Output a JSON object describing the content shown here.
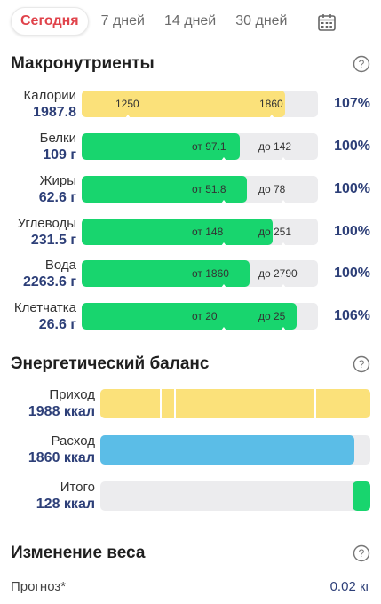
{
  "tabs": [
    {
      "label": "Сегодня",
      "active": true
    },
    {
      "label": "7 дней",
      "active": false
    },
    {
      "label": "14 дней",
      "active": false
    },
    {
      "label": "30 дней",
      "active": false
    }
  ],
  "icons": {
    "calendar": "calendar-icon",
    "help": "question-circle-icon"
  },
  "colors": {
    "accent": "#e0434b",
    "value_text": "#2d3f78",
    "calories_fill": "#fbe17a",
    "macro_fill": "#18d56e",
    "expense_fill": "#5bbde7",
    "track": "#ececee"
  },
  "macros": {
    "title": "Макронутриенты",
    "items": [
      {
        "name": "Калории",
        "value": "1987.8",
        "low_label": "1250",
        "high_label": "1860",
        "percent": "107%",
        "fill": 0.86,
        "color": "yellow"
      },
      {
        "name": "Белки",
        "value": "109 г",
        "low_label": "от 97.1",
        "high_label": "до 142",
        "percent": "100%",
        "fill": 0.67,
        "color": "green"
      },
      {
        "name": "Жиры",
        "value": "62.6 г",
        "low_label": "от 51.8",
        "high_label": "до 78",
        "percent": "100%",
        "fill": 0.7,
        "color": "green"
      },
      {
        "name": "Углеводы",
        "value": "231.5 г",
        "low_label": "от 148",
        "high_label": "до 251",
        "percent": "100%",
        "fill": 0.81,
        "color": "green"
      },
      {
        "name": "Вода",
        "value": "2263.6 г",
        "low_label": "от 1860",
        "high_label": "до 2790",
        "percent": "100%",
        "fill": 0.71,
        "color": "green"
      },
      {
        "name": "Клетчатка",
        "value": "26.6 г",
        "low_label": "от 20",
        "high_label": "до 25",
        "percent": "106%",
        "fill": 0.91,
        "color": "green"
      }
    ]
  },
  "energy": {
    "title": "Энергетический баланс",
    "items": [
      {
        "name": "Приход",
        "value": "1988 ккал",
        "fill": 1.0,
        "color": "yellow"
      },
      {
        "name": "Расход",
        "value": "1860 ккал",
        "fill": 0.94,
        "color": "blue"
      },
      {
        "name": "Итого",
        "value": "128 ккал",
        "fill": 0.065,
        "color": "green"
      }
    ]
  },
  "weight": {
    "title": "Изменение веса",
    "forecast_label": "Прогноз*",
    "forecast_value": "0.02 кг"
  }
}
